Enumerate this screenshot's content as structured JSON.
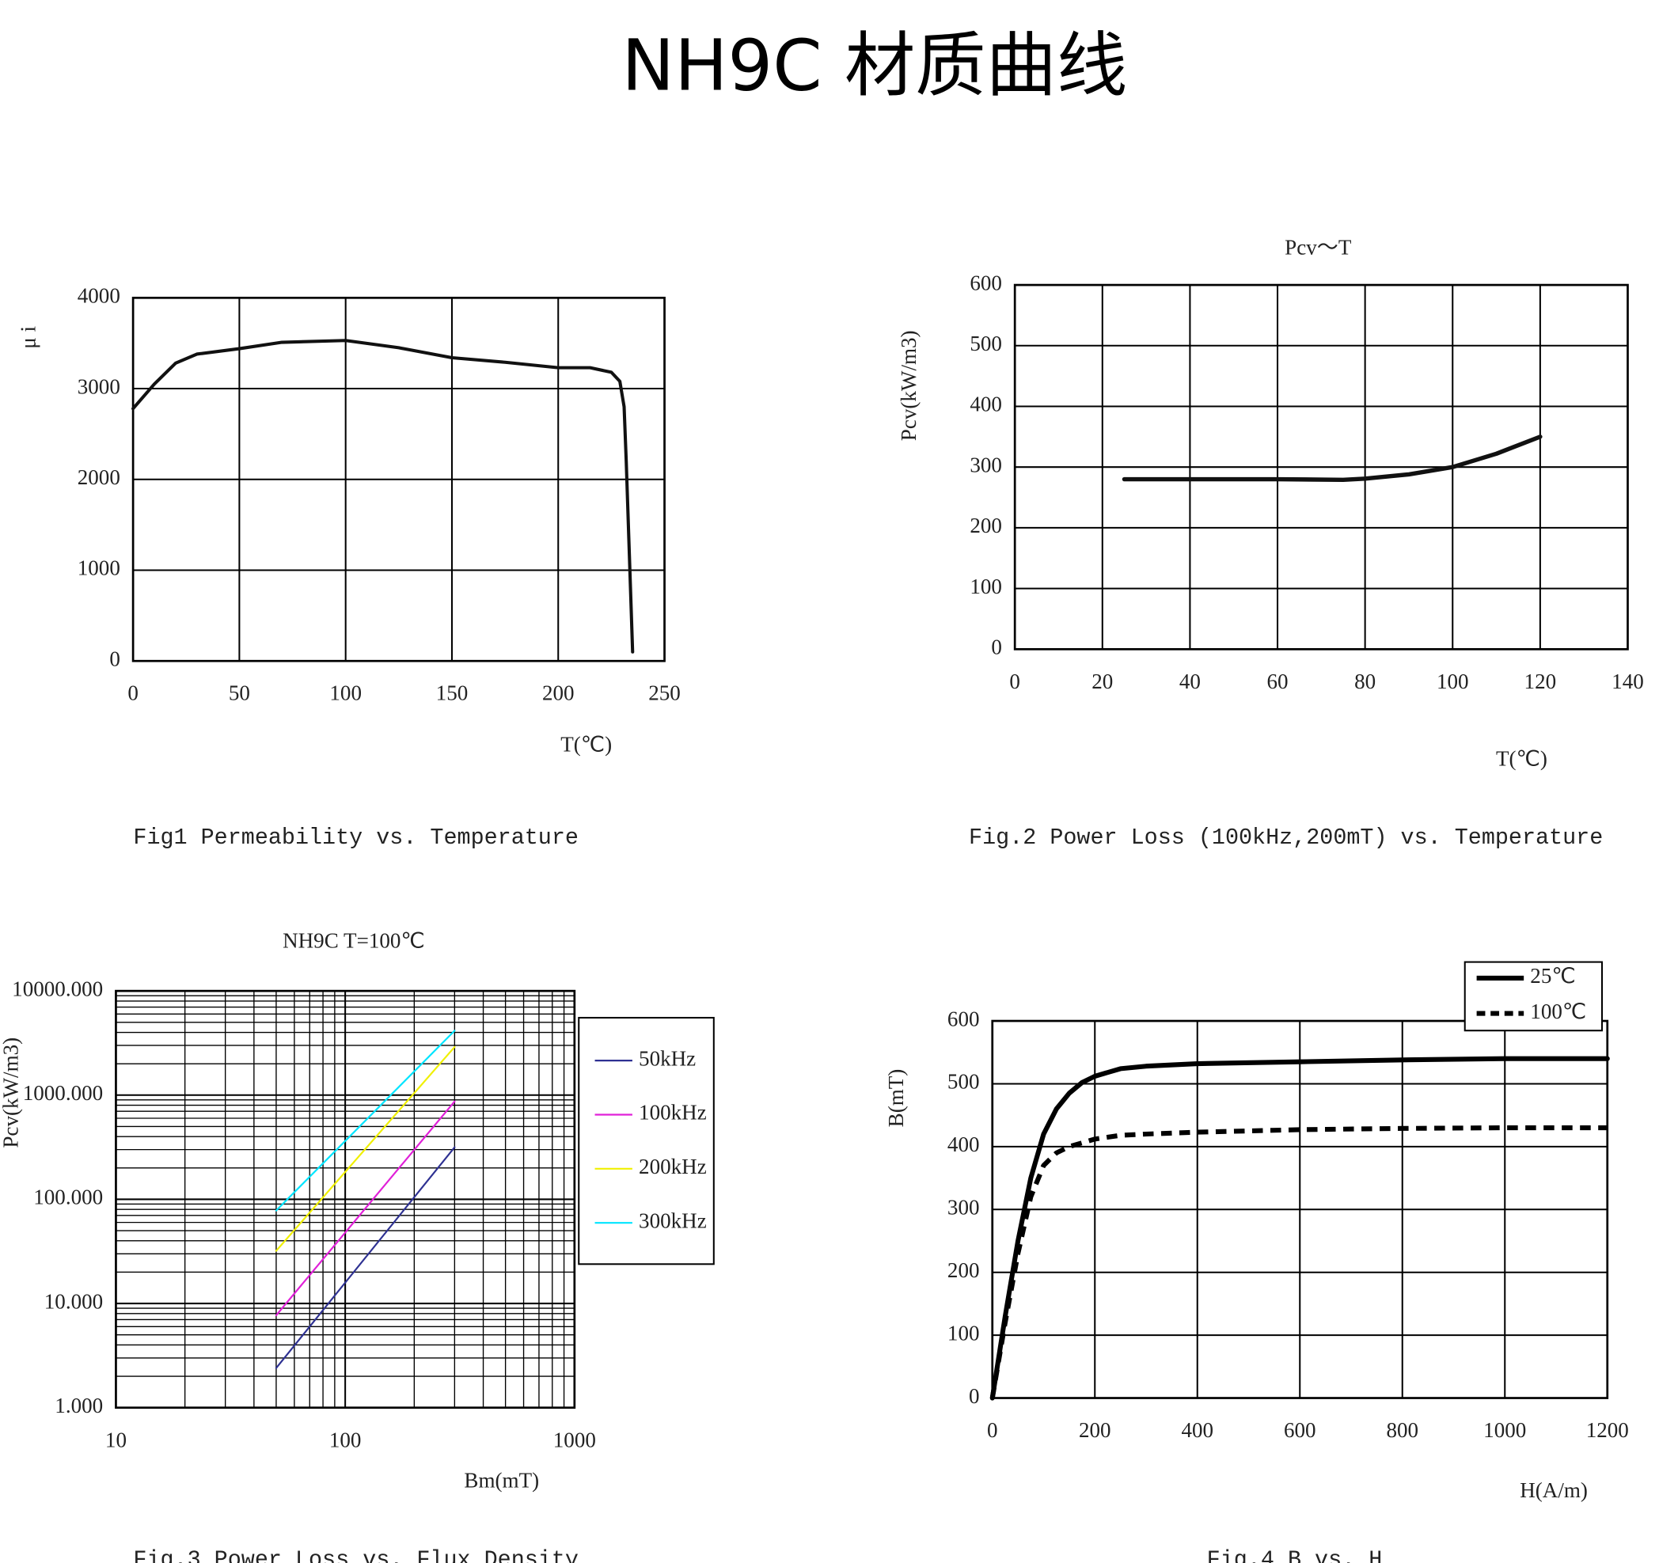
{
  "title": "NH9C 材质曲线",
  "chart_data": [
    {
      "type": "line",
      "ylabel": "μ i",
      "xlabel": "T(℃)",
      "caption": "Fig1 Permeability vs. Temperature",
      "xlim": [
        0,
        250
      ],
      "xticks": [
        0,
        50,
        100,
        150,
        200,
        250
      ],
      "ylim": [
        0,
        4000
      ],
      "yticks": [
        0,
        1000,
        2000,
        3000,
        4000
      ],
      "grid": true,
      "series": [
        {
          "color": "#111111",
          "x": [
            0,
            10,
            20,
            30,
            50,
            70,
            100,
            125,
            150,
            175,
            200,
            215,
            225,
            229,
            231,
            232,
            233,
            234,
            235
          ],
          "values": [
            2780,
            3050,
            3280,
            3380,
            3440,
            3510,
            3530,
            3450,
            3340,
            3290,
            3230,
            3230,
            3180,
            3080,
            2800,
            2200,
            1500,
            800,
            100
          ]
        }
      ]
    },
    {
      "type": "line",
      "title": "Pcv～T",
      "ylabel": "Pcv(kW/m3)",
      "xlabel": "T(℃)",
      "caption": "Fig.2 Power Loss (100kHz,200mT) vs. Temperature",
      "xlim": [
        0,
        140
      ],
      "xticks": [
        0,
        20,
        40,
        60,
        80,
        100,
        120,
        140
      ],
      "ylim": [
        0,
        600
      ],
      "yticks": [
        0,
        100,
        200,
        300,
        400,
        500,
        600
      ],
      "grid": true,
      "series": [
        {
          "color": "#111111",
          "x": [
            25,
            40,
            60,
            75,
            80,
            90,
            100,
            110,
            120
          ],
          "values": [
            280,
            280,
            280,
            279,
            281,
            288,
            300,
            322,
            350
          ]
        }
      ]
    },
    {
      "type": "line",
      "title": "NH9C  T=100℃",
      "ylabel": "Pcv(kW/m3)",
      "xlabel": "Bm(mT)",
      "caption": "Fig.3 Power Loss vs. Flux Density",
      "xscale": "log",
      "yscale": "log",
      "minor_grid": true,
      "xlim": [
        10,
        1000
      ],
      "xticks": [
        10,
        100,
        1000
      ],
      "ylim": [
        1,
        10000
      ],
      "yticks": [
        {
          "value": 1,
          "label": "1.000"
        },
        {
          "value": 10,
          "label": "10.000"
        },
        {
          "value": 100,
          "label": "100.000"
        },
        {
          "value": 1000,
          "label": "1000.000"
        },
        {
          "value": 10000,
          "label": "10000.000"
        }
      ],
      "grid": true,
      "legend": "right",
      "series": [
        {
          "name": "50kHz",
          "color": "#2e3192",
          "x": [
            50,
            300
          ],
          "values": [
            2.4,
            316
          ]
        },
        {
          "name": "100kHz",
          "color": "#e020d8",
          "x": [
            50,
            300
          ],
          "values": [
            7.7,
            870
          ]
        },
        {
          "name": "200kHz",
          "color": "#f0f000",
          "x": [
            50,
            300
          ],
          "values": [
            32,
            2900
          ]
        },
        {
          "name": "300kHz",
          "color": "#00e5ff",
          "x": [
            50,
            300
          ],
          "values": [
            78,
            4150
          ]
        }
      ]
    },
    {
      "type": "line",
      "ylabel": "B(mT)",
      "xlabel": "H(A/m)",
      "caption": "Fig.4  B vs. H",
      "xlim": [
        0,
        1200
      ],
      "xticks": [
        0,
        200,
        400,
        600,
        800,
        1000,
        1200
      ],
      "ylim": [
        0,
        600
      ],
      "yticks": [
        0,
        100,
        200,
        300,
        400,
        500,
        600
      ],
      "grid": true,
      "legend": "top right",
      "series": [
        {
          "name": "25℃",
          "color": "#000000",
          "dash": false,
          "x": [
            0,
            25,
            50,
            75,
            100,
            125,
            150,
            175,
            200,
            250,
            300,
            400,
            600,
            800,
            1000,
            1200
          ],
          "values": [
            0,
            130,
            250,
            350,
            420,
            460,
            485,
            502,
            512,
            524,
            528,
            532,
            535,
            538,
            540,
            540
          ]
        },
        {
          "name": "100℃",
          "color": "#000000",
          "dash": true,
          "x": [
            0,
            25,
            50,
            75,
            100,
            125,
            150,
            200,
            250,
            300,
            400,
            600,
            800,
            1000,
            1200
          ],
          "values": [
            0,
            120,
            230,
            320,
            370,
            390,
            400,
            412,
            418,
            420,
            423,
            427,
            429,
            430,
            430
          ]
        }
      ]
    }
  ]
}
